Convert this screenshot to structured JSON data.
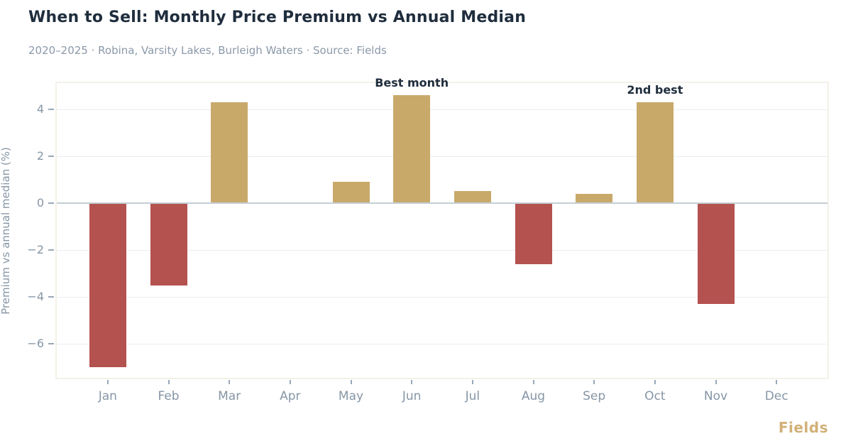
{
  "header": {
    "title": "When to Sell: Monthly Price Premium vs Annual Median",
    "subtitle": "2020–2025 · Robina, Varsity Lakes, Burleigh Waters · Source: Fields"
  },
  "branding": {
    "logo_text": "Fields",
    "logo_color": "#d2b077"
  },
  "chart_data": {
    "type": "bar",
    "title": "When to Sell: Monthly Price Premium vs Annual Median",
    "subtitle": "2020–2025 · Robina, Varsity Lakes, Burleigh Waters · Source: Fields",
    "categories": [
      "Jan",
      "Feb",
      "Mar",
      "Apr",
      "May",
      "Jun",
      "Jul",
      "Aug",
      "Sep",
      "Oct",
      "Nov",
      "Dec"
    ],
    "values": [
      -7.0,
      -3.5,
      4.3,
      0,
      0.9,
      4.6,
      0.5,
      -2.6,
      0.4,
      4.3,
      -4.3,
      0
    ],
    "xlabel": "",
    "ylabel": "Premium vs annual median (%)",
    "ylim": [
      -7.5,
      5.17
    ],
    "yticks": [
      4,
      2,
      0,
      -2,
      -4,
      -6
    ],
    "grid": true,
    "legend": "none",
    "annotations": [
      {
        "text": "Best month",
        "category": "Jun"
      },
      {
        "text": "2nd best",
        "category": "Oct"
      }
    ],
    "colors": {
      "positive_bar": "#c9a96a",
      "negative_bar": "#b4524f",
      "grid": "#e9eef1",
      "zero_line": "#c4ced6",
      "spine": "#f4f1e8",
      "axis_text": "#8696a6",
      "title_text": "#1f2d3d"
    }
  }
}
